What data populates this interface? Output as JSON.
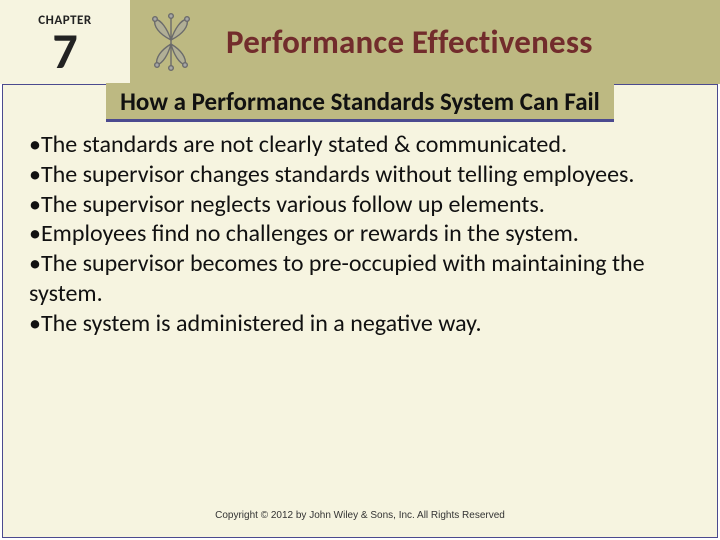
{
  "header": {
    "chapter_label": "CHAPTER",
    "chapter_number": "7",
    "band_bg_color": "#bdb982",
    "chapter_bg_color": "#f6f4e0",
    "title": "Performance Effectiveness",
    "title_color": "#722c2c",
    "title_fontsize": 33,
    "ornament_stroke": "#6b6b6b",
    "ornament_fill": "#a7a7a7"
  },
  "content": {
    "bg_color": "#f6f4e0",
    "border_color": "#4b4a8f",
    "subtitle": "How a Performance Standards System Can Fail",
    "subtitle_bg": "#bdb982",
    "subtitle_underline": "#4b4a8f",
    "subtitle_fontsize": 25,
    "subtitle_color": "#111111",
    "bullet_char": "•",
    "bullet_fontsize": 24,
    "bullet_color": "#111111",
    "bullets": [
      "The standards are not clearly stated & communicated.",
      "The supervisor changes standards without telling employees.",
      "The supervisor neglects various follow up elements.",
      "Employees find no challenges or rewards in the system.",
      "The supervisor becomes to pre-occupied with maintaining the system.",
      "The system is administered in a negative way."
    ]
  },
  "footer": {
    "copyright": "Copyright © 2012 by John Wiley & Sons, Inc. All Rights Reserved"
  }
}
